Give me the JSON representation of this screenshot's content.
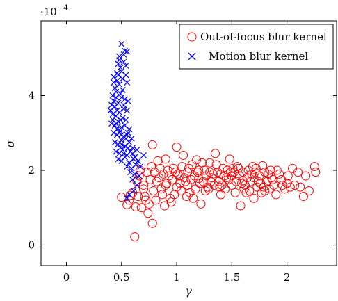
{
  "chart_data": {
    "type": "scatter",
    "title": "",
    "xlabel": "γ",
    "ylabel": "σ",
    "y_multiplier_label": "·10",
    "y_multiplier_exponent": "−4",
    "xlim": [
      -0.23,
      2.45
    ],
    "ylim": [
      -0.55,
      6.0
    ],
    "x_ticks": [
      {
        "value": 0,
        "label": "0"
      },
      {
        "value": 0.5,
        "label": "0.5"
      },
      {
        "value": 1,
        "label": "1"
      },
      {
        "value": 1.5,
        "label": "1.5"
      },
      {
        "value": 2,
        "label": "2"
      }
    ],
    "y_ticks": [
      {
        "value": 0,
        "label": "0"
      },
      {
        "value": 2,
        "label": "2"
      },
      {
        "value": 4,
        "label": "4"
      }
    ],
    "grid": false,
    "legend_position": "top-right",
    "series": [
      {
        "name": "Out-of-focus blur kernel",
        "marker": "circle",
        "color": "#ff0000",
        "points": [
          [
            0.62,
            0.22
          ],
          [
            0.78,
            0.58
          ],
          [
            0.74,
            0.85
          ],
          [
            0.68,
            1.0
          ],
          [
            0.63,
            1.02
          ],
          [
            0.55,
            1.08
          ],
          [
            0.5,
            1.28
          ],
          [
            0.58,
            1.33
          ],
          [
            0.57,
            1.2
          ],
          [
            0.6,
            1.4
          ],
          [
            0.65,
            1.3
          ],
          [
            0.7,
            1.5
          ],
          [
            0.72,
            1.2
          ],
          [
            0.75,
            1.1
          ],
          [
            0.78,
            2.68
          ],
          [
            0.83,
            2.25
          ],
          [
            0.85,
            2.05
          ],
          [
            0.9,
            1.6
          ],
          [
            0.95,
            1.15
          ],
          [
            0.98,
            1.35
          ],
          [
            1.0,
            2.62
          ],
          [
            1.02,
            1.85
          ],
          [
            1.05,
            2.1
          ],
          [
            1.08,
            1.7
          ],
          [
            1.1,
            1.95
          ],
          [
            1.12,
            1.4
          ],
          [
            1.15,
            1.25
          ],
          [
            1.18,
            2.28
          ],
          [
            1.2,
            1.78
          ],
          [
            1.22,
            1.1
          ],
          [
            1.25,
            2.0
          ],
          [
            1.28,
            1.55
          ],
          [
            1.3,
            2.2
          ],
          [
            1.33,
            1.9
          ],
          [
            1.35,
            2.45
          ],
          [
            1.38,
            1.7
          ],
          [
            1.4,
            1.35
          ],
          [
            1.42,
            2.05
          ],
          [
            1.45,
            1.8
          ],
          [
            1.48,
            2.3
          ],
          [
            1.5,
            1.6
          ],
          [
            1.52,
            1.95
          ],
          [
            1.55,
            2.1
          ],
          [
            1.58,
            1.05
          ],
          [
            1.6,
            1.72
          ],
          [
            1.63,
            1.4
          ],
          [
            1.65,
            2.0
          ],
          [
            1.68,
            1.9
          ],
          [
            1.7,
            1.25
          ],
          [
            1.73,
            1.55
          ],
          [
            1.75,
            1.85
          ],
          [
            1.78,
            2.12
          ],
          [
            1.8,
            1.45
          ],
          [
            1.82,
            1.7
          ],
          [
            1.85,
            2.0
          ],
          [
            1.88,
            1.6
          ],
          [
            1.9,
            1.35
          ],
          [
            1.93,
            1.9
          ],
          [
            1.95,
            1.75
          ],
          [
            1.98,
            1.5
          ],
          [
            2.0,
            1.65
          ],
          [
            2.03,
            1.55
          ],
          [
            2.05,
            2.05
          ],
          [
            2.1,
            1.95
          ],
          [
            2.12,
            1.55
          ],
          [
            2.15,
            1.3
          ],
          [
            2.17,
            1.85
          ],
          [
            2.2,
            1.45
          ],
          [
            2.25,
            2.1
          ],
          [
            2.26,
            1.95
          ],
          [
            0.88,
            1.9
          ],
          [
            0.92,
            2.0
          ],
          [
            0.96,
            1.75
          ],
          [
            0.8,
            1.95
          ],
          [
            0.82,
            1.7
          ],
          [
            0.86,
            1.5
          ],
          [
            0.9,
            2.3
          ],
          [
            0.94,
            1.25
          ],
          [
            1.0,
            1.55
          ],
          [
            1.04,
            1.45
          ],
          [
            1.06,
            2.4
          ],
          [
            1.1,
            1.6
          ],
          [
            1.14,
            2.15
          ],
          [
            1.16,
            1.85
          ],
          [
            1.2,
            2.0
          ],
          [
            1.24,
            1.7
          ],
          [
            1.26,
            1.45
          ],
          [
            1.3,
            1.95
          ],
          [
            1.34,
            1.6
          ],
          [
            1.36,
            2.15
          ],
          [
            1.4,
            1.9
          ],
          [
            1.44,
            1.5
          ],
          [
            1.46,
            2.0
          ],
          [
            1.5,
            1.85
          ],
          [
            1.54,
            1.7
          ],
          [
            1.56,
            2.05
          ],
          [
            1.6,
            1.95
          ],
          [
            1.62,
            1.6
          ],
          [
            1.66,
            1.45
          ],
          [
            1.7,
            1.8
          ],
          [
            1.72,
            2.05
          ],
          [
            1.76,
            1.65
          ],
          [
            1.8,
            1.95
          ],
          [
            1.84,
            1.5
          ],
          [
            1.86,
            1.8
          ],
          [
            0.66,
            1.85
          ],
          [
            0.7,
            1.6
          ],
          [
            0.73,
            1.95
          ],
          [
            0.76,
            1.75
          ],
          [
            0.79,
            1.45
          ],
          [
            0.84,
            1.8
          ],
          [
            0.87,
            1.35
          ],
          [
            0.91,
            1.65
          ],
          [
            0.97,
            2.05
          ],
          [
            1.01,
            1.9
          ],
          [
            1.07,
            1.8
          ],
          [
            1.11,
            2.05
          ],
          [
            1.17,
            1.5
          ],
          [
            1.21,
            1.65
          ],
          [
            1.27,
            1.85
          ],
          [
            1.31,
            1.7
          ],
          [
            1.37,
            1.95
          ],
          [
            1.41,
            1.6
          ],
          [
            1.47,
            1.75
          ],
          [
            1.51,
            2.05
          ],
          [
            1.57,
            1.85
          ],
          [
            1.61,
            1.5
          ],
          [
            1.67,
            1.7
          ],
          [
            1.71,
            1.95
          ],
          [
            1.77,
            1.4
          ],
          [
            0.64,
            1.7
          ],
          [
            0.67,
            2.0
          ],
          [
            0.71,
            1.3
          ],
          [
            0.77,
            2.1
          ],
          [
            0.81,
            1.2
          ],
          [
            0.89,
            1.05
          ],
          [
            0.93,
            1.85
          ],
          [
            0.99,
            1.95
          ],
          [
            1.03,
            1.65
          ],
          [
            1.09,
            1.3
          ],
          [
            1.13,
            1.75
          ],
          [
            1.19,
            1.95
          ],
          [
            1.23,
            2.2
          ],
          [
            1.29,
            1.5
          ],
          [
            1.32,
            1.8
          ],
          [
            1.39,
            1.55
          ],
          [
            1.43,
            1.85
          ],
          [
            1.49,
            1.95
          ],
          [
            1.53,
            1.4
          ],
          [
            1.59,
            1.65
          ],
          [
            1.64,
            1.8
          ],
          [
            1.69,
            2.1
          ],
          [
            1.74,
            1.7
          ],
          [
            1.79,
            1.55
          ],
          [
            1.83,
            1.9
          ],
          [
            1.87,
            1.75
          ],
          [
            1.91,
            2.0
          ],
          [
            1.96,
            1.6
          ],
          [
            2.01,
            1.85
          ],
          [
            2.07,
            1.6
          ]
        ]
      },
      {
        "name": "Motion blur kernel",
        "marker": "cross",
        "color": "#0000ff",
        "points": [
          [
            0.5,
            5.38
          ],
          [
            0.53,
            5.2
          ],
          [
            0.48,
            5.05
          ],
          [
            0.55,
            5.18
          ],
          [
            0.47,
            4.85
          ],
          [
            0.52,
            4.9
          ],
          [
            0.43,
            4.5
          ],
          [
            0.46,
            4.4
          ],
          [
            0.5,
            4.65
          ],
          [
            0.54,
            4.55
          ],
          [
            0.44,
            4.2
          ],
          [
            0.48,
            4.3
          ],
          [
            0.51,
            4.15
          ],
          [
            0.55,
            4.35
          ],
          [
            0.42,
            4.0
          ],
          [
            0.45,
            3.95
          ],
          [
            0.49,
            4.05
          ],
          [
            0.53,
            3.9
          ],
          [
            0.41,
            3.75
          ],
          [
            0.44,
            3.7
          ],
          [
            0.47,
            3.8
          ],
          [
            0.52,
            3.65
          ],
          [
            0.56,
            3.85
          ],
          [
            0.42,
            3.5
          ],
          [
            0.45,
            3.45
          ],
          [
            0.48,
            3.55
          ],
          [
            0.51,
            3.4
          ],
          [
            0.55,
            3.6
          ],
          [
            0.41,
            3.25
          ],
          [
            0.44,
            3.2
          ],
          [
            0.47,
            3.3
          ],
          [
            0.5,
            3.15
          ],
          [
            0.54,
            3.35
          ],
          [
            0.57,
            3.1
          ],
          [
            0.43,
            3.0
          ],
          [
            0.46,
            2.95
          ],
          [
            0.49,
            3.05
          ],
          [
            0.52,
            2.9
          ],
          [
            0.56,
            3.0
          ],
          [
            0.59,
            2.85
          ],
          [
            0.44,
            2.75
          ],
          [
            0.47,
            2.7
          ],
          [
            0.5,
            2.8
          ],
          [
            0.53,
            2.65
          ],
          [
            0.57,
            2.75
          ],
          [
            0.6,
            2.6
          ],
          [
            0.45,
            2.5
          ],
          [
            0.48,
            2.45
          ],
          [
            0.51,
            2.55
          ],
          [
            0.55,
            2.4
          ],
          [
            0.58,
            2.5
          ],
          [
            0.62,
            2.35
          ],
          [
            0.47,
            2.3
          ],
          [
            0.5,
            2.25
          ],
          [
            0.53,
            2.35
          ],
          [
            0.57,
            2.2
          ],
          [
            0.61,
            2.3
          ],
          [
            0.65,
            2.25
          ],
          [
            0.55,
            2.1
          ],
          [
            0.59,
            2.05
          ],
          [
            0.63,
            2.15
          ],
          [
            0.67,
            2.1
          ],
          [
            0.58,
            1.95
          ],
          [
            0.62,
            1.9
          ],
          [
            0.66,
            1.85
          ],
          [
            0.6,
            1.75
          ],
          [
            0.64,
            1.6
          ],
          [
            0.57,
            1.35
          ],
          [
            0.61,
            1.45
          ],
          [
            0.55,
            1.25
          ],
          [
            0.46,
            4.6
          ],
          [
            0.49,
            4.75
          ],
          [
            0.51,
            4.45
          ],
          [
            0.45,
            4.1
          ],
          [
            0.5,
            3.95
          ],
          [
            0.46,
            3.6
          ],
          [
            0.49,
            3.35
          ],
          [
            0.53,
            3.2
          ],
          [
            0.46,
            3.1
          ],
          [
            0.5,
            2.95
          ],
          [
            0.54,
            2.85
          ],
          [
            0.49,
            2.6
          ],
          [
            0.52,
            2.45
          ],
          [
            0.56,
            2.6
          ],
          [
            0.6,
            2.45
          ],
          [
            0.64,
            2.55
          ],
          [
            0.7,
            2.4
          ],
          [
            0.43,
            3.85
          ],
          [
            0.4,
            3.6
          ],
          [
            0.42,
            3.35
          ],
          [
            0.48,
            4.95
          ],
          [
            0.52,
            5.1
          ],
          [
            0.54,
            4.8
          ],
          [
            0.47,
            4.55
          ],
          [
            0.43,
            4.35
          ],
          [
            0.45,
            3.25
          ],
          [
            0.52,
            3.75
          ],
          [
            0.48,
            3.0
          ],
          [
            0.55,
            2.95
          ],
          [
            0.5,
            2.7
          ]
        ]
      }
    ]
  }
}
